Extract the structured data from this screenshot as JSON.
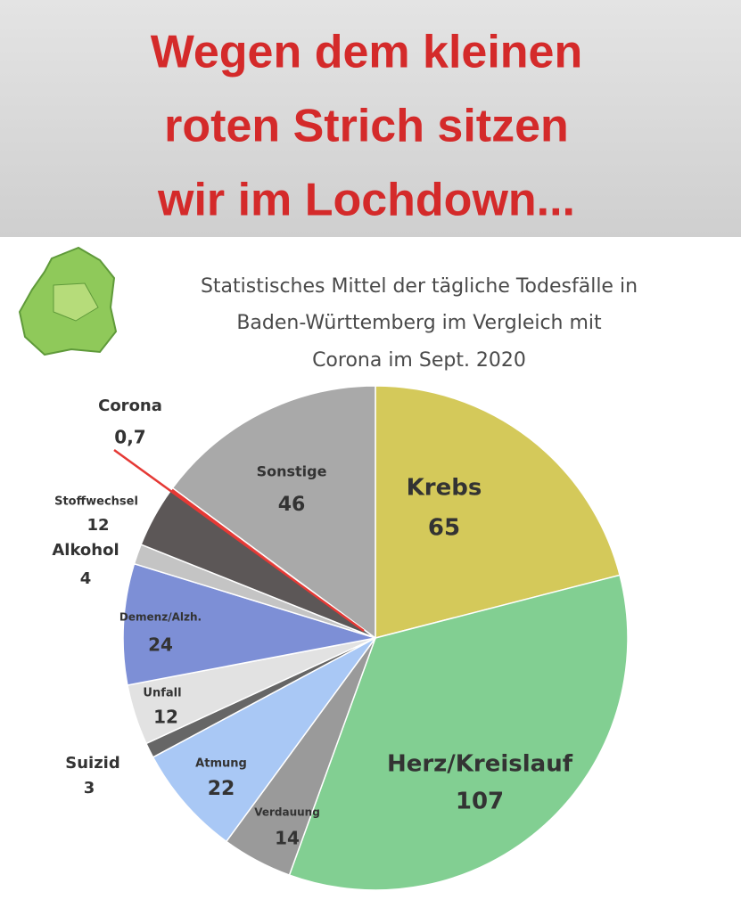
{
  "chart_data": {
    "type": "pie",
    "title": [
      "Wegen dem kleinen",
      "roten Strich sitzen",
      "wir im Lochdown..."
    ],
    "subtitle": [
      "Statistisches Mittel der tägliche Todesfälle in",
      "Baden-Württemberg im Vergleich mit",
      "Corona im Sept. 2020"
    ],
    "categories": [
      "Krebs",
      "Herz/Kreislauf",
      "Verdauung",
      "Atmung",
      "Suizid",
      "Unfall",
      "Demenz/Alzh.",
      "Alkohol",
      "Stoffwechsel",
      "Corona",
      "Sonstige"
    ],
    "values": [
      65,
      107,
      14,
      22,
      3,
      12,
      24,
      4,
      12,
      0.7,
      46
    ],
    "value_labels": [
      "65",
      "107",
      "14",
      "22",
      "3",
      "12",
      "24",
      "4",
      "12",
      "0,7",
      "46"
    ],
    "colors": [
      "#d4c95a",
      "#82cf92",
      "#9a9a9a",
      "#a9c8f5",
      "#666666",
      "#e2e2e2",
      "#7d8fd6",
      "#c4c4c4",
      "#5c5757",
      "#e53935",
      "#a9a9a9"
    ]
  }
}
